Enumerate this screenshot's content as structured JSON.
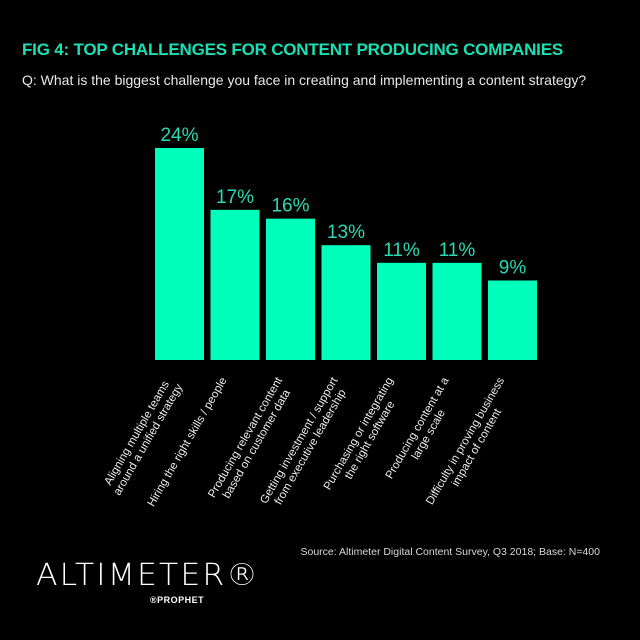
{
  "header": {
    "title": "FIG 4: TOP CHALLENGES FOR CONTENT PRODUCING COMPANIES",
    "subtitle": "Q: What is the biggest challenge you face in creating and implementing a content strategy?"
  },
  "chart_data": {
    "type": "bar",
    "categories": [
      [
        "Aligning multiple teams",
        "around a unified strategy"
      ],
      [
        "Hiring the right skills / people"
      ],
      [
        "Producing relevant content",
        "based on customer data"
      ],
      [
        "Getting investment / support",
        "from executive leadership"
      ],
      [
        "Purchasing or integrating",
        "the right software"
      ],
      [
        "Producing content at a",
        "large scale"
      ],
      [
        "Difficulty in proving business",
        "impact of content"
      ]
    ],
    "values": [
      24,
      17,
      16,
      13,
      11,
      11,
      9
    ],
    "data_labels": [
      "24%",
      "17%",
      "16%",
      "13%",
      "11%",
      "11%",
      "9%"
    ],
    "unit": "%",
    "ylim": [
      0,
      24
    ],
    "grid": false,
    "bar_color": "#00ffbb",
    "label_color": "#2ad9b3"
  },
  "footer": {
    "source": "Source: Altimeter Digital Content Survey, Q3 2018; Base: N=400",
    "logo_text": "ALTIMETER®",
    "logo_sub": "®PROPHET"
  }
}
